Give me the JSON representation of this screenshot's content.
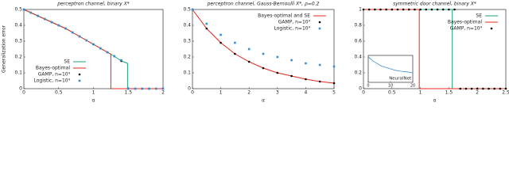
{
  "chart_data": [
    {
      "type": "line",
      "title": "perceptron channel, binary X*",
      "ylabel": "Generalization error",
      "xlabel": "α",
      "xlim": [
        0,
        2
      ],
      "xticks": [
        0,
        0.5,
        1,
        1.5,
        2
      ],
      "ylim": [
        0,
        0.5
      ],
      "yticks": [
        0,
        0.1,
        0.2,
        0.3,
        0.4,
        0.5
      ],
      "legend": "lower left",
      "series": [
        {
          "name": "SE",
          "color": "#1aa37a",
          "marker": "line",
          "x": [
            0,
            0.1,
            0.2,
            0.3,
            0.4,
            0.5,
            0.6,
            0.7,
            0.8,
            0.9,
            1.0,
            1.1,
            1.2,
            1.3,
            1.4,
            1.49,
            1.49,
            2
          ],
          "values": [
            0.5,
            0.48,
            0.46,
            0.44,
            0.42,
            0.4,
            0.38,
            0.355,
            0.33,
            0.305,
            0.28,
            0.255,
            0.23,
            0.205,
            0.175,
            0.16,
            0,
            0
          ]
        },
        {
          "name": "Bayes-optimal",
          "color": "#e0281e",
          "marker": "line",
          "x": [
            0,
            0.1,
            0.2,
            0.3,
            0.4,
            0.5,
            0.6,
            0.7,
            0.8,
            0.9,
            1.0,
            1.1,
            1.2,
            1.25,
            1.25,
            2
          ],
          "values": [
            0.5,
            0.48,
            0.46,
            0.44,
            0.42,
            0.4,
            0.38,
            0.355,
            0.33,
            0.305,
            0.28,
            0.255,
            0.23,
            0.218,
            0,
            0
          ]
        },
        {
          "name": "GAMP, n=10⁴",
          "color": "#000000",
          "marker": "dots",
          "x": [
            0,
            0.1,
            0.2,
            0.3,
            0.4,
            0.5,
            0.6,
            0.7,
            0.8,
            0.9,
            1.0,
            1.1,
            1.2,
            1.3,
            1.4,
            1.5,
            1.6,
            1.7,
            1.8,
            1.9,
            2.0
          ],
          "values": [
            0.5,
            0.48,
            0.46,
            0.44,
            0.42,
            0.4,
            0.38,
            0.355,
            0.33,
            0.305,
            0.28,
            0.255,
            0.23,
            0.205,
            0.175,
            0,
            0,
            0,
            0,
            0,
            0
          ]
        },
        {
          "name": "Logistic, n=10⁴",
          "color": "#3a8fd0",
          "marker": "squares",
          "x": [
            0,
            0.1,
            0.2,
            0.3,
            0.4,
            0.5,
            0.6,
            0.7,
            0.8,
            0.9,
            1.0,
            1.1,
            1.2,
            1.3,
            1.4,
            1.5,
            1.6,
            1.7,
            1.8,
            1.9,
            2.0
          ],
          "values": [
            0.5,
            0.48,
            0.46,
            0.44,
            0.42,
            0.4,
            0.38,
            0.355,
            0.33,
            0.305,
            0.28,
            0.255,
            0.23,
            0.205,
            0.18,
            0,
            0,
            0,
            0,
            0,
            0
          ]
        }
      ]
    },
    {
      "type": "line",
      "title": "perceptron channel, Gauss-Bernoulli X*, ρ=0.2",
      "xlabel": "α",
      "xlim": [
        0,
        5
      ],
      "xticks": [
        0,
        1,
        2,
        3,
        4,
        5
      ],
      "ylim": [
        0,
        0.5
      ],
      "yticks": [
        0,
        0.1,
        0.2,
        0.3,
        0.4,
        0.5
      ],
      "legend": "upper right",
      "series": [
        {
          "name": "Bayes-optimal and SE",
          "color": "#e0281e",
          "marker": "line",
          "x": [
            0,
            0.5,
            1,
            1.5,
            2,
            2.5,
            3,
            3.5,
            4,
            4.5,
            5
          ],
          "values": [
            0.5,
            0.38,
            0.29,
            0.22,
            0.17,
            0.13,
            0.1,
            0.08,
            0.06,
            0.045,
            0.035
          ]
        },
        {
          "name": "GAMP, n=10⁴",
          "color": "#000000",
          "marker": "dots",
          "x": [
            0,
            0.5,
            1,
            1.5,
            2,
            2.5,
            3,
            3.5,
            4,
            4.5,
            5
          ],
          "values": [
            0.5,
            0.38,
            0.29,
            0.22,
            0.17,
            0.13,
            0.1,
            0.08,
            0.06,
            0.045,
            0.035
          ]
        },
        {
          "name": "Logistic, n=10⁴",
          "color": "#3a8fd0",
          "marker": "squares",
          "x": [
            0,
            0.5,
            1,
            1.5,
            2,
            2.5,
            3,
            3.5,
            4,
            4.5,
            5
          ],
          "values": [
            0.5,
            0.41,
            0.34,
            0.29,
            0.25,
            0.22,
            0.2,
            0.18,
            0.16,
            0.15,
            0.14
          ]
        }
      ]
    },
    {
      "type": "line",
      "title": "symmetric door channel, binary X*",
      "xlabel": "α",
      "xlim": [
        0,
        2.5
      ],
      "xticks": [
        0,
        0.5,
        1,
        1.5,
        2,
        2.5
      ],
      "ylim": [
        0,
        1
      ],
      "yticks": [
        0,
        0.2,
        0.4,
        0.6,
        0.8,
        1
      ],
      "legend": "upper right",
      "series": [
        {
          "name": "SE",
          "color": "#1aa37a",
          "marker": "line",
          "x": [
            0,
            1.56,
            1.56,
            2.5
          ],
          "values": [
            1,
            1,
            0,
            0
          ]
        },
        {
          "name": "Bayes-optimal",
          "color": "#e0281e",
          "marker": "line",
          "x": [
            0,
            0.98,
            0.98,
            2.5
          ],
          "values": [
            1,
            1,
            0,
            0
          ]
        },
        {
          "name": "GAMP, n=10⁴",
          "color": "#000000",
          "marker": "dots",
          "x": [
            0,
            0.1,
            0.2,
            0.3,
            0.4,
            0.5,
            0.6,
            0.7,
            0.8,
            0.9,
            1.0,
            1.1,
            1.2,
            1.3,
            1.4,
            1.5,
            1.6,
            1.7,
            1.8,
            1.9,
            2.0,
            2.1,
            2.2,
            2.3,
            2.4,
            2.5
          ],
          "values": [
            1,
            1,
            1,
            1,
            1,
            1,
            1,
            1,
            1,
            1,
            1,
            1,
            1,
            1,
            1,
            1,
            1,
            0,
            0,
            0,
            0,
            0,
            0,
            0,
            0,
            0
          ]
        }
      ],
      "inset": {
        "name": "NeuralNet",
        "color": "#3a8fd0",
        "xlim": [
          0,
          20
        ],
        "xticks": [
          0,
          10,
          20
        ],
        "ylim": [
          0,
          1
        ],
        "x": [
          0,
          2,
          4,
          6,
          8,
          10,
          12,
          14,
          16,
          18,
          20
        ],
        "values": [
          0.95,
          0.8,
          0.7,
          0.6,
          0.55,
          0.5,
          0.45,
          0.42,
          0.4,
          0.38,
          0.35
        ]
      }
    }
  ]
}
